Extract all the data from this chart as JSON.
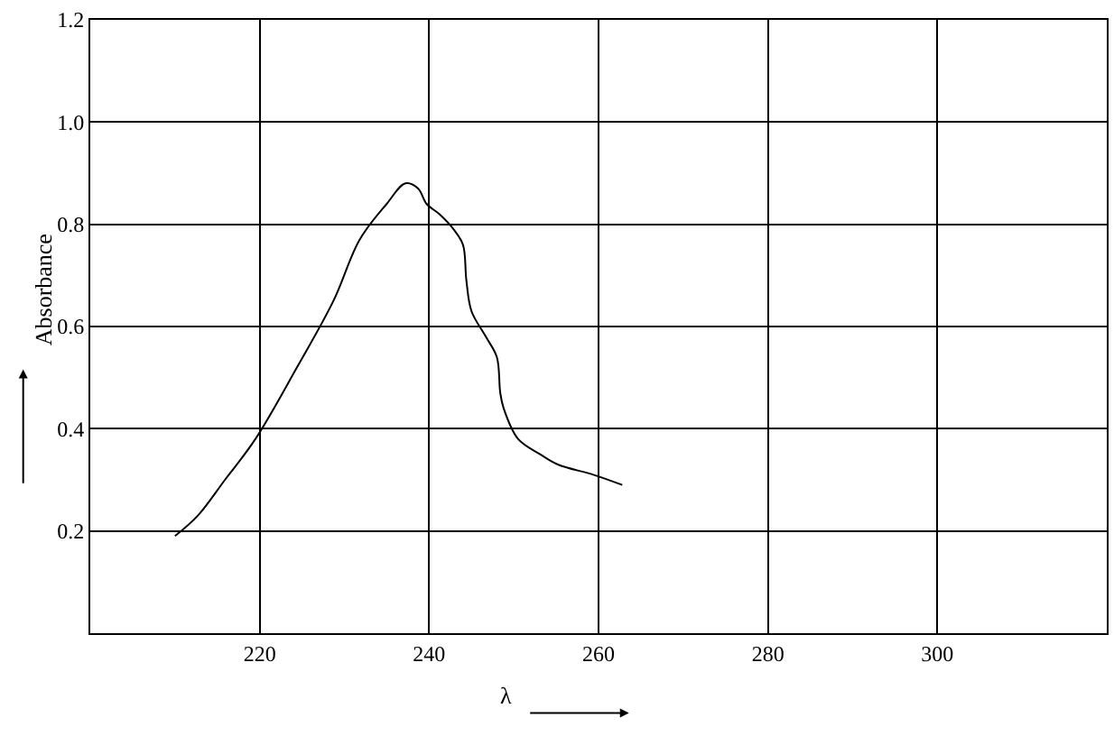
{
  "chart_data": {
    "type": "line",
    "xlabel": "λ",
    "ylabel": "Absorbance",
    "x": [
      210.0,
      212.7,
      215.9,
      219.5,
      224.4,
      228.7,
      231.8,
      235.0,
      237.2,
      238.7,
      239.7,
      241.2,
      242.9,
      244.0,
      244.4,
      245.0,
      246.7,
      248.0,
      248.4,
      248.8,
      250.5,
      253.1,
      255.2,
      259.4,
      262.8
    ],
    "series": [
      {
        "color": "#000000",
        "values": [
          0.19,
          0.23,
          0.3,
          0.38,
          0.52,
          0.65,
          0.77,
          0.84,
          0.88,
          0.87,
          0.84,
          0.82,
          0.79,
          0.76,
          0.69,
          0.63,
          0.58,
          0.54,
          0.47,
          0.44,
          0.38,
          0.35,
          0.33,
          0.31,
          0.29
        ]
      }
    ],
    "xlim": [
      200,
      320
    ],
    "xticks": [
      220,
      240,
      260,
      280,
      300
    ],
    "ylim": [
      0,
      1.2
    ],
    "yticks": [
      0.2,
      0.4,
      0.6,
      0.8,
      {
        "value": 1,
        "label": "1.0"
      },
      1.2
    ],
    "grid": true,
    "marker": "none",
    "line_style": "solid"
  }
}
